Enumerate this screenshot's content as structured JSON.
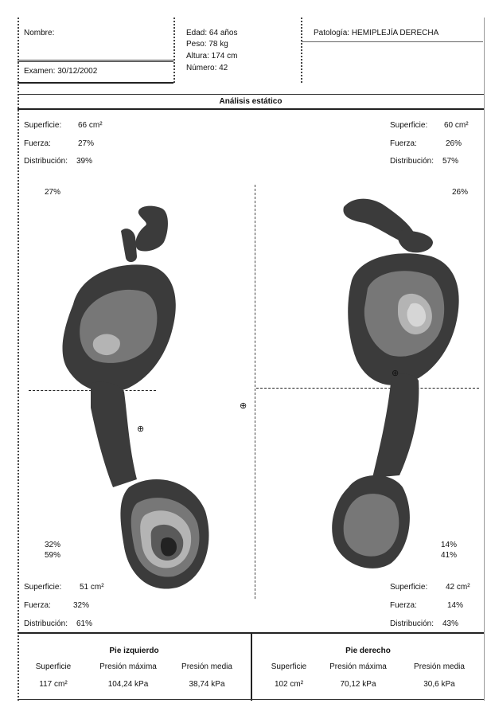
{
  "header": {
    "nombre_label": "Nombre:",
    "examen": "Examen: 30/12/2002",
    "edad": "Edad: 64 años",
    "peso": "Peso: 78 kg",
    "altura": "Altura: 174 cm",
    "numero": "Número: 42",
    "patologia": "Patología: HEMIPLEJÍA DERECHA"
  },
  "section_title": "Análisis estático",
  "left_top": {
    "superficie_label": "Superficie:",
    "superficie_value": "66 cm²",
    "fuerza_label": "Fuerza:",
    "fuerza_value": "27%",
    "distribucion_label": "Distribución:",
    "distribucion_value": "39%",
    "forefoot_pct": "27%"
  },
  "right_top": {
    "superficie_label": "Superficie:",
    "superficie_value": "60 cm²",
    "fuerza_label": "Fuerza:",
    "fuerza_value": "26%",
    "distribucion_label": "Distribución:",
    "distribucion_value": "57%",
    "forefoot_pct": "26%"
  },
  "left_bottom": {
    "heel_pct_1": "32%",
    "heel_pct_2": "59%",
    "superficie_label": "Superficie:",
    "superficie_value": "51 cm²",
    "fuerza_label": "Fuerza:",
    "fuerza_value": "32%",
    "distribucion_label": "Distribución:",
    "distribucion_value": "61%"
  },
  "right_bottom": {
    "heel_pct_1": "14%",
    "heel_pct_2": "41%",
    "superficie_label": "Superficie:",
    "superficie_value": "42 cm²",
    "fuerza_label": "Fuerza:",
    "fuerza_value": "14%",
    "distribucion_label": "Distribución:",
    "distribucion_value": "43%"
  },
  "summary": {
    "left": {
      "title": "Pie izquierdo",
      "headers": [
        "Superficie",
        "Presión máxima",
        "Presión media"
      ],
      "values": [
        "117 cm²",
        "104,24 kPa",
        "38,74 kPa"
      ]
    },
    "right": {
      "title": "Pie derecho",
      "headers": [
        "Superficie",
        "Presión máxima",
        "Presión media"
      ],
      "values": [
        "102 cm²",
        "70,12 kPa",
        "30,6 kPa"
      ]
    }
  },
  "colors": {
    "outer": "#3b3b3b",
    "mid": "#777777",
    "light": "#b4b4b4",
    "lighter": "#d6d6d6",
    "core": "#5a5a5a",
    "dark_core": "#222222"
  }
}
